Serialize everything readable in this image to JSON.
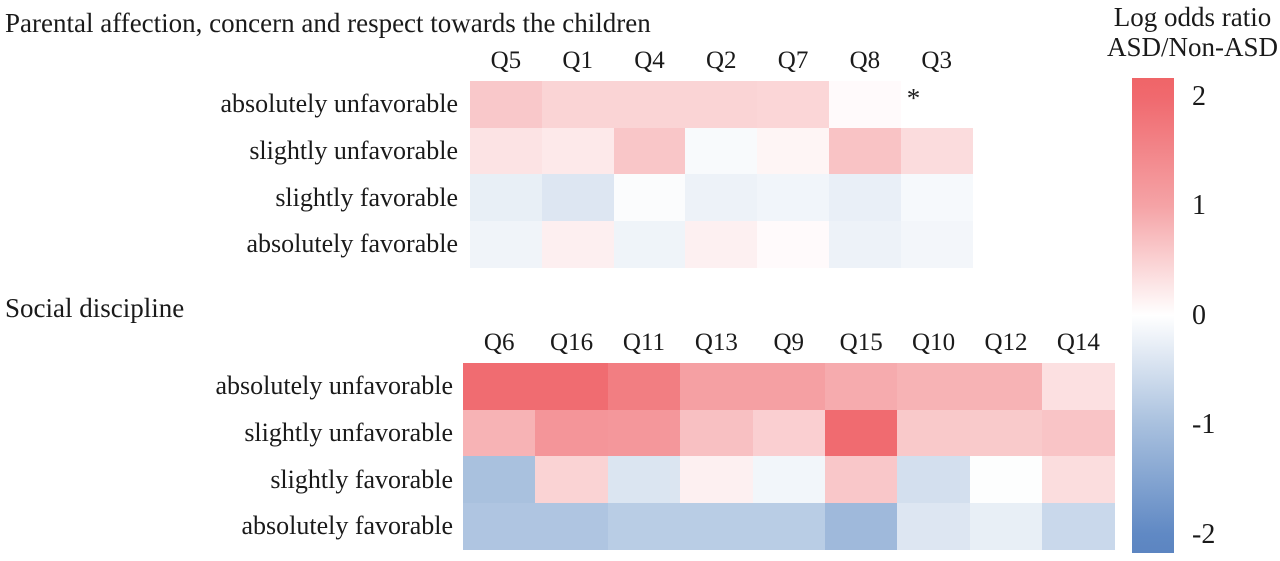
{
  "chart_data": {
    "type": "heatmap",
    "value_range": [
      -2,
      2
    ],
    "colormap_anchors": [
      {
        "value": -2,
        "color": "#6089c4"
      },
      {
        "value": -1,
        "color": "#a8c0de"
      },
      {
        "value": 0,
        "color": "#ffffff"
      },
      {
        "value": 1,
        "color": "#f5a3a6"
      },
      {
        "value": 2,
        "color": "#f0696e"
      }
    ],
    "colorbar": {
      "title_line1": "Log odds ratio",
      "title_line2": "ASD/Non-ASD",
      "ticks": [
        {
          "label": "2",
          "value": 2
        },
        {
          "label": "1",
          "value": 1
        },
        {
          "label": "0",
          "value": 0
        },
        {
          "label": "-1",
          "value": -1
        },
        {
          "label": "-2",
          "value": -2
        }
      ]
    },
    "sections": [
      {
        "title": "Parental affection, concern and respect towards the children",
        "columns": [
          "Q5",
          "Q1",
          "Q4",
          "Q2",
          "Q7",
          "Q8",
          "Q3"
        ],
        "rows": [
          "absolutely unfavorable",
          "slightly unfavorable",
          "slightly favorable",
          "absolutely favorable"
        ],
        "values": [
          [
            0.6,
            0.47,
            0.47,
            0.47,
            0.45,
            0.05,
            0.0
          ],
          [
            0.3,
            0.24,
            0.62,
            -0.08,
            0.11,
            0.65,
            0.38
          ],
          [
            -0.26,
            -0.39,
            -0.05,
            -0.21,
            -0.16,
            -0.25,
            -0.1
          ],
          [
            -0.17,
            0.17,
            -0.18,
            0.16,
            0.05,
            -0.21,
            -0.14
          ]
        ],
        "annotations": [
          {
            "row": 0,
            "col": 6,
            "text": "*"
          }
        ]
      },
      {
        "title": "Social discipline",
        "columns": [
          "Q6",
          "Q16",
          "Q11",
          "Q13",
          "Q9",
          "Q15",
          "Q10",
          "Q12",
          "Q14"
        ],
        "rows": [
          "absolutely unfavorable",
          "slightly unfavorable",
          "slightly favorable",
          "absolutely favorable"
        ],
        "values": [
          [
            1.95,
            1.95,
            1.64,
            1.05,
            1.05,
            0.91,
            0.83,
            0.83,
            0.34
          ],
          [
            0.83,
            1.24,
            1.2,
            0.68,
            0.52,
            1.97,
            0.59,
            0.58,
            0.64
          ],
          [
            -0.99,
            0.48,
            -0.41,
            0.16,
            -0.15,
            0.61,
            -0.51,
            -0.02,
            0.37
          ],
          [
            -0.92,
            -0.92,
            -0.8,
            -0.8,
            -0.8,
            -1.13,
            -0.39,
            -0.26,
            -0.62
          ]
        ],
        "annotations": []
      }
    ]
  }
}
